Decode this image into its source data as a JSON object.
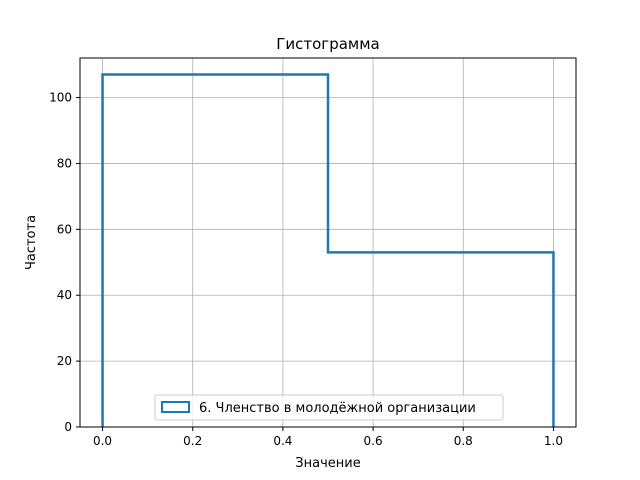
{
  "chart_data": {
    "type": "histogram",
    "title": "Гистограмма",
    "xlabel": "Значение",
    "ylabel": "Частота",
    "xlim": [
      -0.05,
      1.05
    ],
    "ylim": [
      0,
      112
    ],
    "xticks": [
      0.0,
      0.2,
      0.4,
      0.6,
      0.8,
      1.0
    ],
    "xtick_labels": [
      "0.0",
      "0.2",
      "0.4",
      "0.6",
      "0.8",
      "1.0"
    ],
    "yticks": [
      0,
      20,
      40,
      60,
      80,
      100
    ],
    "ytick_labels": [
      "0",
      "20",
      "40",
      "60",
      "80",
      "100"
    ],
    "grid": true,
    "legend_position": "bottom-center",
    "series": [
      {
        "name": "6. Членство в молодёжной организации",
        "color": "#1f77b4",
        "histtype": "step",
        "bins": [
          0.0,
          0.5,
          1.0
        ],
        "counts": [
          107,
          53
        ]
      }
    ]
  }
}
